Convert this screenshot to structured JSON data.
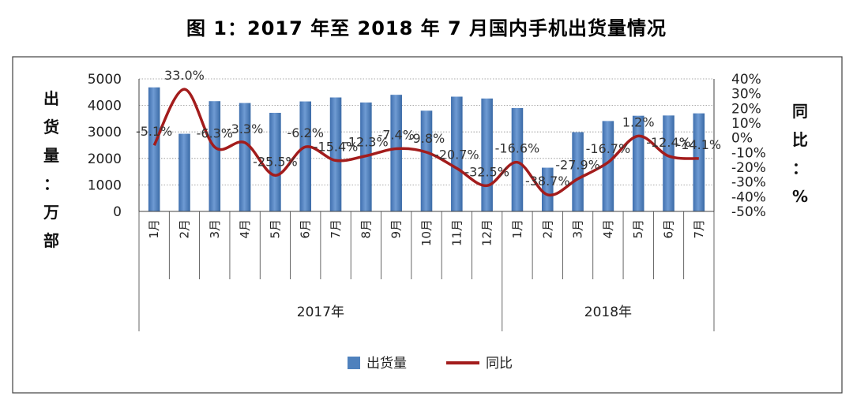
{
  "chart_data": {
    "type": "bar",
    "title": "图 1：2017 年至 2018 年 7 月国内手机出货量情况",
    "categories": [
      "1月",
      "2月",
      "3月",
      "4月",
      "5月",
      "6月",
      "7月",
      "8月",
      "9月",
      "10月",
      "11月",
      "12月",
      "1月",
      "2月",
      "3月",
      "4月",
      "5月",
      "6月",
      "7月"
    ],
    "groups": [
      {
        "label": "2017年",
        "count": 12
      },
      {
        "label": "2018年",
        "count": 7
      }
    ],
    "series": [
      {
        "name": "出货量",
        "type": "bar",
        "axis": "left",
        "values": [
          4680,
          2930,
          4160,
          4090,
          3720,
          4150,
          4300,
          4110,
          4400,
          3800,
          4330,
          4260,
          3900,
          1650,
          2990,
          3410,
          3610,
          3620,
          3700
        ]
      },
      {
        "name": "同比",
        "type": "line",
        "axis": "right",
        "values": [
          -5.1,
          33.0,
          -6.3,
          -3.3,
          -25.5,
          -6.2,
          -15.4,
          -12.3,
          -7.4,
          -9.8,
          -20.7,
          -32.5,
          -16.6,
          -38.7,
          -27.9,
          -16.7,
          1.2,
          -12.4,
          -14.1
        ],
        "labels": [
          "-5.1%",
          "33.0%",
          "-6.3%",
          "-3.3%",
          "-25.5%",
          "-6.2%",
          "-15.4%",
          "-12.3%",
          "-7.4%",
          "-9.8%",
          "-20.7%",
          "-32.5%",
          "-16.6%",
          "-38.7%",
          "-27.9%",
          "-16.7%",
          "1.2%",
          "-12.4%",
          "-14.1%"
        ]
      }
    ],
    "y_left": {
      "label": "出货量：万部",
      "ticks": [
        "0",
        "1000",
        "2000",
        "3000",
        "4000",
        "5000"
      ],
      "ylim": [
        0,
        5000
      ]
    },
    "y_right": {
      "label": "同比：%",
      "ticks": [
        "-50%",
        "-40%",
        "-30%",
        "-20%",
        "-10%",
        "0%",
        "10%",
        "20%",
        "30%",
        "40%"
      ],
      "ylim": [
        -50,
        40
      ]
    },
    "legend": {
      "position": "bottom",
      "items": [
        "出货量",
        "同比"
      ]
    },
    "colors": {
      "bar": "#4f81bd",
      "bar_dark": "#3a6aa6",
      "line": "#a31c1c",
      "grid": "#8c8c8c",
      "frame": "#404040"
    }
  }
}
